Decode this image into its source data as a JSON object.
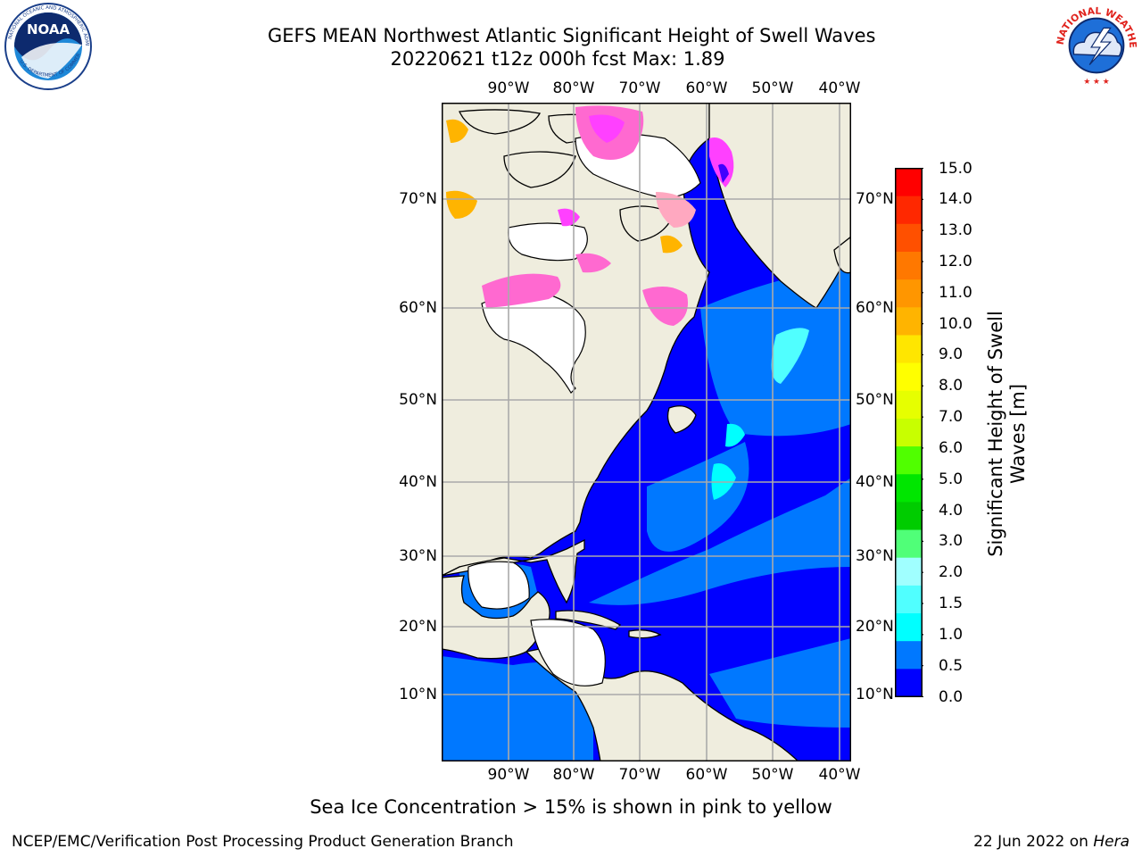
{
  "header": {
    "title_line1": "GEFS MEAN Northwest Atlantic Significant Height of Swell Waves",
    "title_line2": "20220621 t12z 000h fcst   Max: 1.89"
  },
  "logos": {
    "left": {
      "name": "noaa-logo",
      "text": "NOAA"
    },
    "right": {
      "name": "nws-logo",
      "text": "NATIONAL WEATHER SERVICE"
    }
  },
  "map": {
    "lon_labels": [
      "90°W",
      "80°W",
      "70°W",
      "60°W",
      "50°W",
      "40°W"
    ],
    "lat_labels": [
      "70°N",
      "60°N",
      "50°N",
      "40°N",
      "30°N",
      "20°N",
      "10°N"
    ],
    "lon_range": [
      -100,
      -38
    ],
    "lat_range": [
      0,
      80
    ],
    "grid": true,
    "colors": {
      "land": "#efedde",
      "ice_free_gap": "#ffffff",
      "gridline": "#aaaaaa",
      "coastline": "#000000"
    }
  },
  "colorbar": {
    "title_line1": "Significant Height of Swell",
    "title_line2": "Waves [m]",
    "labels": [
      "15.0",
      "14.0",
      "13.0",
      "12.0",
      "11.0",
      "10.0",
      "9.0",
      "8.0",
      "7.0",
      "6.0",
      "5.0",
      "4.0",
      "3.0",
      "2.0",
      "1.5",
      "1.0",
      "0.5",
      "0.0"
    ],
    "colors": [
      "#ff0000",
      "#ff2800",
      "#ff5000",
      "#ff7800",
      "#ff9600",
      "#ffb400",
      "#ffe600",
      "#ffff00",
      "#e6ff00",
      "#c8ff00",
      "#50ff00",
      "#00e600",
      "#00cc00",
      "#50ff78",
      "#a0ffff",
      "#50ffff",
      "#00ffff",
      "#0078ff",
      "#0000ff"
    ]
  },
  "footer": {
    "note": "Sea Ice Concentration > 15% is shown in pink to yellow",
    "credit": "NCEP/EMC/Verification Post Processing Product Generation Branch",
    "date": "22 Jun 2022 on",
    "host": "Hera"
  }
}
